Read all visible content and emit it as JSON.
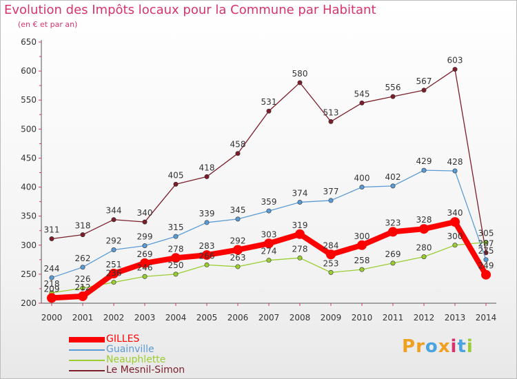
{
  "title": "Evolution des Impôts locaux pour la Commune par Habitant",
  "subtitle": "(en € et par an)",
  "logo": {
    "letters": [
      "P",
      "r",
      "o",
      "x",
      "i",
      "t",
      "i"
    ],
    "colors": [
      "#f0a020",
      "#f0a020",
      "#4aa3df",
      "#f0a020",
      "#d6336c",
      "#4aa3df",
      "#9acd32"
    ]
  },
  "chart_data": {
    "type": "line",
    "x": [
      "2000",
      "2001",
      "2002",
      "2003",
      "2004",
      "2005",
      "2006",
      "2007",
      "2008",
      "2009",
      "2010",
      "2011",
      "2012",
      "2013",
      "2014"
    ],
    "ylim": [
      200,
      650
    ],
    "yticks": [
      200,
      250,
      300,
      350,
      400,
      450,
      500,
      550,
      600,
      650
    ],
    "grid": false,
    "legend": "bottom-left",
    "series": [
      {
        "name": "GILLES",
        "color": "#ff0000",
        "values": [
          209,
          212,
          251,
          269,
          278,
          283,
          292,
          303,
          319,
          284,
          300,
          323,
          328,
          340,
          249
        ]
      },
      {
        "name": "Guainville",
        "color": "#5b9bd5",
        "values": [
          244,
          262,
          292,
          299,
          315,
          339,
          345,
          359,
          374,
          377,
          400,
          402,
          429,
          428,
          275
        ]
      },
      {
        "name": "Neauphlette",
        "color": "#9acd32",
        "values": [
          218,
          226,
          236,
          246,
          250,
          266,
          263,
          274,
          278,
          253,
          258,
          269,
          280,
          300,
          305
        ]
      },
      {
        "name": "Le Mesnil-Simon",
        "color": "#7b1e2a",
        "values": [
          311,
          318,
          344,
          340,
          405,
          418,
          458,
          531,
          580,
          513,
          545,
          556,
          567,
          603,
          287
        ]
      }
    ],
    "data_labels": [
      [
        "209",
        "212",
        "251",
        "269",
        "278",
        "283",
        "292",
        "303",
        "319",
        "284",
        "300",
        "323",
        "328",
        "340",
        "249"
      ],
      [
        "244",
        "262",
        "292",
        "299",
        "315",
        "339",
        "345",
        "359",
        "374",
        "377",
        "400",
        "402",
        "429",
        "428",
        "275"
      ],
      [
        "218",
        "226",
        "236",
        "246",
        "250",
        "266",
        "263",
        "274",
        "278",
        "253",
        "258",
        "269",
        "280",
        "300",
        "305"
      ],
      [
        "311",
        "318",
        "344",
        "340",
        "405",
        "418",
        "458",
        "531",
        "580",
        "513",
        "545",
        "556",
        "567",
        "603",
        "287"
      ]
    ]
  }
}
